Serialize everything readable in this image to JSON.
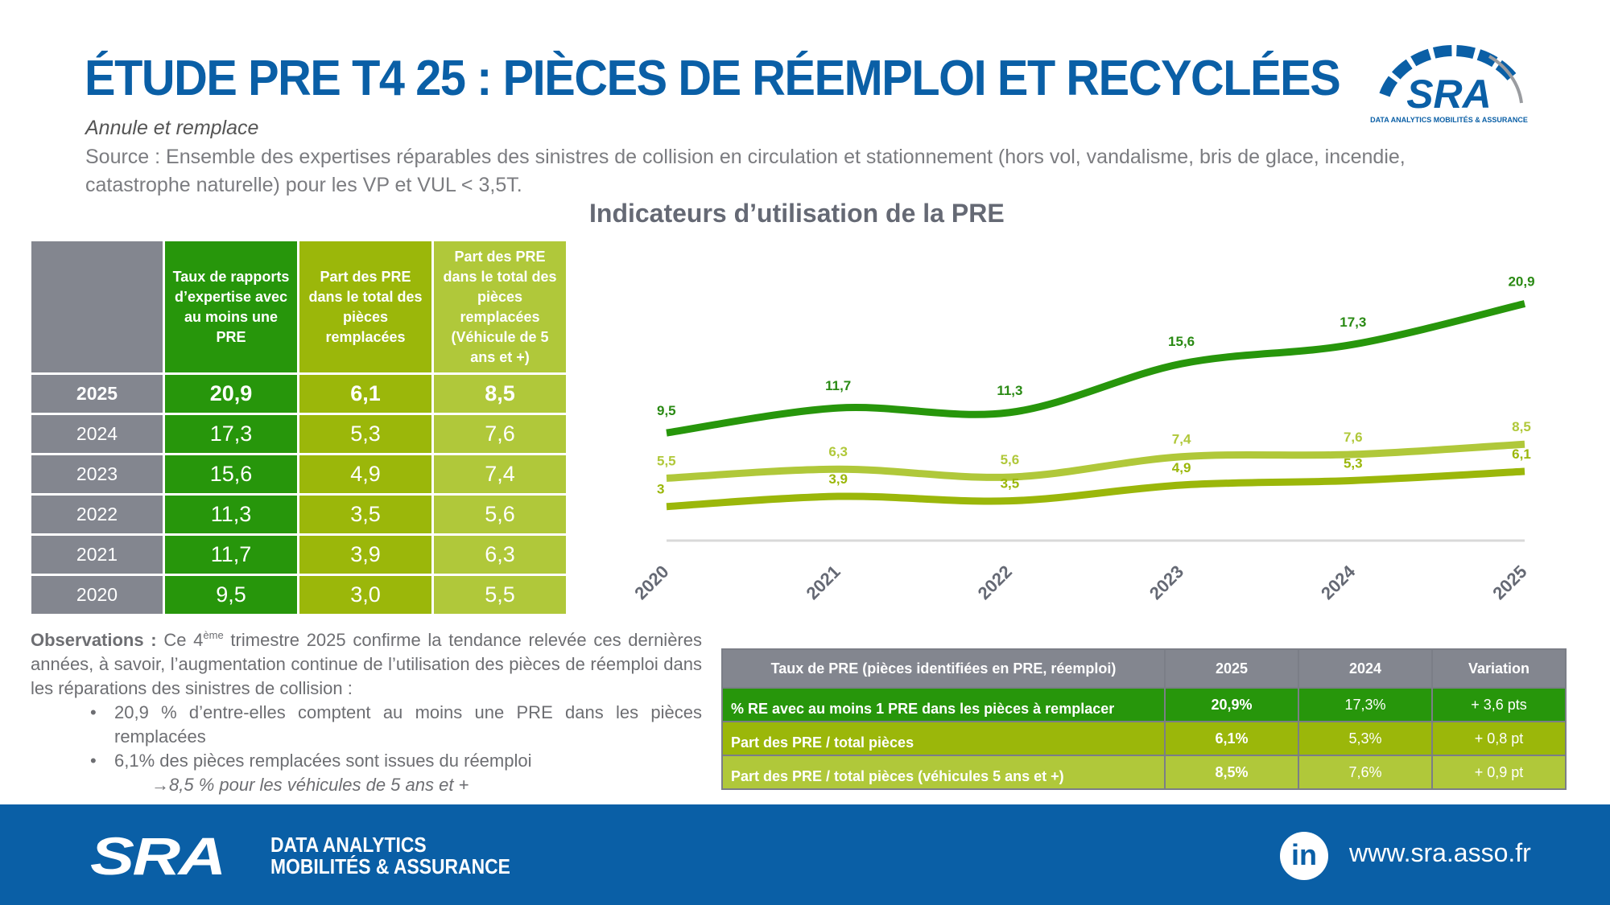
{
  "header": {
    "title": "ÉTUDE PRE T4 25 : PIÈCES DE RÉEMPLOI ET RECYCLÉES",
    "subtitle": "Annule et remplace",
    "source": "Source : Ensemble des expertises réparables des sinistres de collision en circulation et stationnement (hors vol, vandalisme, bris de glace, incendie, catastrophe naturelle) pour les VP et VUL < 3,5T.",
    "logo": {
      "text": "SRA",
      "tagline": "DATA ANALYTICS MOBILITÉS & ASSURANCE"
    }
  },
  "left_table": {
    "headers": [
      "",
      "Taux de rapports d’expertise avec au moins une PRE",
      "Part des PRE dans le total des pièces remplacées",
      "Part des PRE dans le total des pièces remplacées (Véhicule de 5 ans et +)"
    ],
    "rows": [
      [
        "2025",
        "20,9",
        "6,1",
        "8,5"
      ],
      [
        "2024",
        "17,3",
        "5,3",
        "7,6"
      ],
      [
        "2023",
        "15,6",
        "4,9",
        "7,4"
      ],
      [
        "2022",
        "11,3",
        "3,5",
        "5,6"
      ],
      [
        "2021",
        "11,7",
        "3,9",
        "6,3"
      ],
      [
        "2020",
        "9,5",
        "3,0",
        "5,5"
      ]
    ]
  },
  "chart_data": {
    "type": "line",
    "title": "Indicateurs d’utilisation de la PRE",
    "xlabel": "",
    "ylabel": "",
    "categories": [
      "2020",
      "2021",
      "2022",
      "2023",
      "2024",
      "2025"
    ],
    "ylim": [
      0,
      22
    ],
    "grid": false,
    "legend": "none",
    "series": [
      {
        "name": "Taux de rapports d’expertise avec au moins une PRE",
        "values": [
          9.5,
          11.7,
          11.3,
          15.6,
          17.3,
          20.9
        ],
        "labels": [
          "9,5",
          "11,7",
          "11,3",
          "15,6",
          "17,3",
          "20,9"
        ],
        "color": "#27960b"
      },
      {
        "name": "Part des PRE dans le total des pièces remplacées (Véhicule de 5 ans et +)",
        "values": [
          5.5,
          6.3,
          5.6,
          7.4,
          7.6,
          8.5
        ],
        "labels": [
          "5,5",
          "6,3",
          "5,6",
          "7,4",
          "7,6",
          "8,5"
        ],
        "color": "#b0c83a"
      },
      {
        "name": "Part des PRE dans le total des pièces remplacées",
        "values": [
          3.0,
          3.9,
          3.5,
          4.9,
          5.3,
          6.1
        ],
        "labels": [
          "3",
          "3,9",
          "3,5",
          "4,9",
          "5,3",
          "6,1"
        ],
        "color": "#9bb70a"
      }
    ]
  },
  "observations": {
    "lead": "Observations :",
    "intro_pre": " Ce 4",
    "intro_sup": "ème",
    "intro_post": " trimestre 2025 confirme la tendance relevée ces dernières années, à savoir, l’augmentation continue de l’utilisation des pièces de réemploi dans les réparations des sinistres de collision :",
    "bullets": [
      "20,9 % d’entre-elles comptent au moins une PRE dans les pièces remplacées",
      "6,1% des pièces remplacées sont issues du réemploi"
    ],
    "sub_note": "→8,5 % pour les véhicules de 5 ans et +"
  },
  "right_table": {
    "headers": [
      "Taux de PRE (pièces identifiées en PRE, réemploi)",
      "2025",
      "2024",
      "Variation"
    ],
    "rows": [
      [
        "% RE avec au moins 1 PRE dans les pièces à remplacer",
        "20,9%",
        "17,3%",
        "+ 3,6 pts"
      ],
      [
        "Part des PRE / total pièces",
        "6,1%",
        "5,3%",
        "+ 0,8 pt"
      ],
      [
        "Part des PRE / total pièces (véhicules 5 ans et +)",
        "8,5%",
        "7,6%",
        "+ 0,9 pt"
      ]
    ]
  },
  "footer": {
    "logo_text": "SRA",
    "tagline_1": "DATA ANALYTICS",
    "tagline_2": "MOBILITÉS & ASSURANCE",
    "linkedin_icon": "in",
    "url": "www.sra.asso.fr"
  }
}
